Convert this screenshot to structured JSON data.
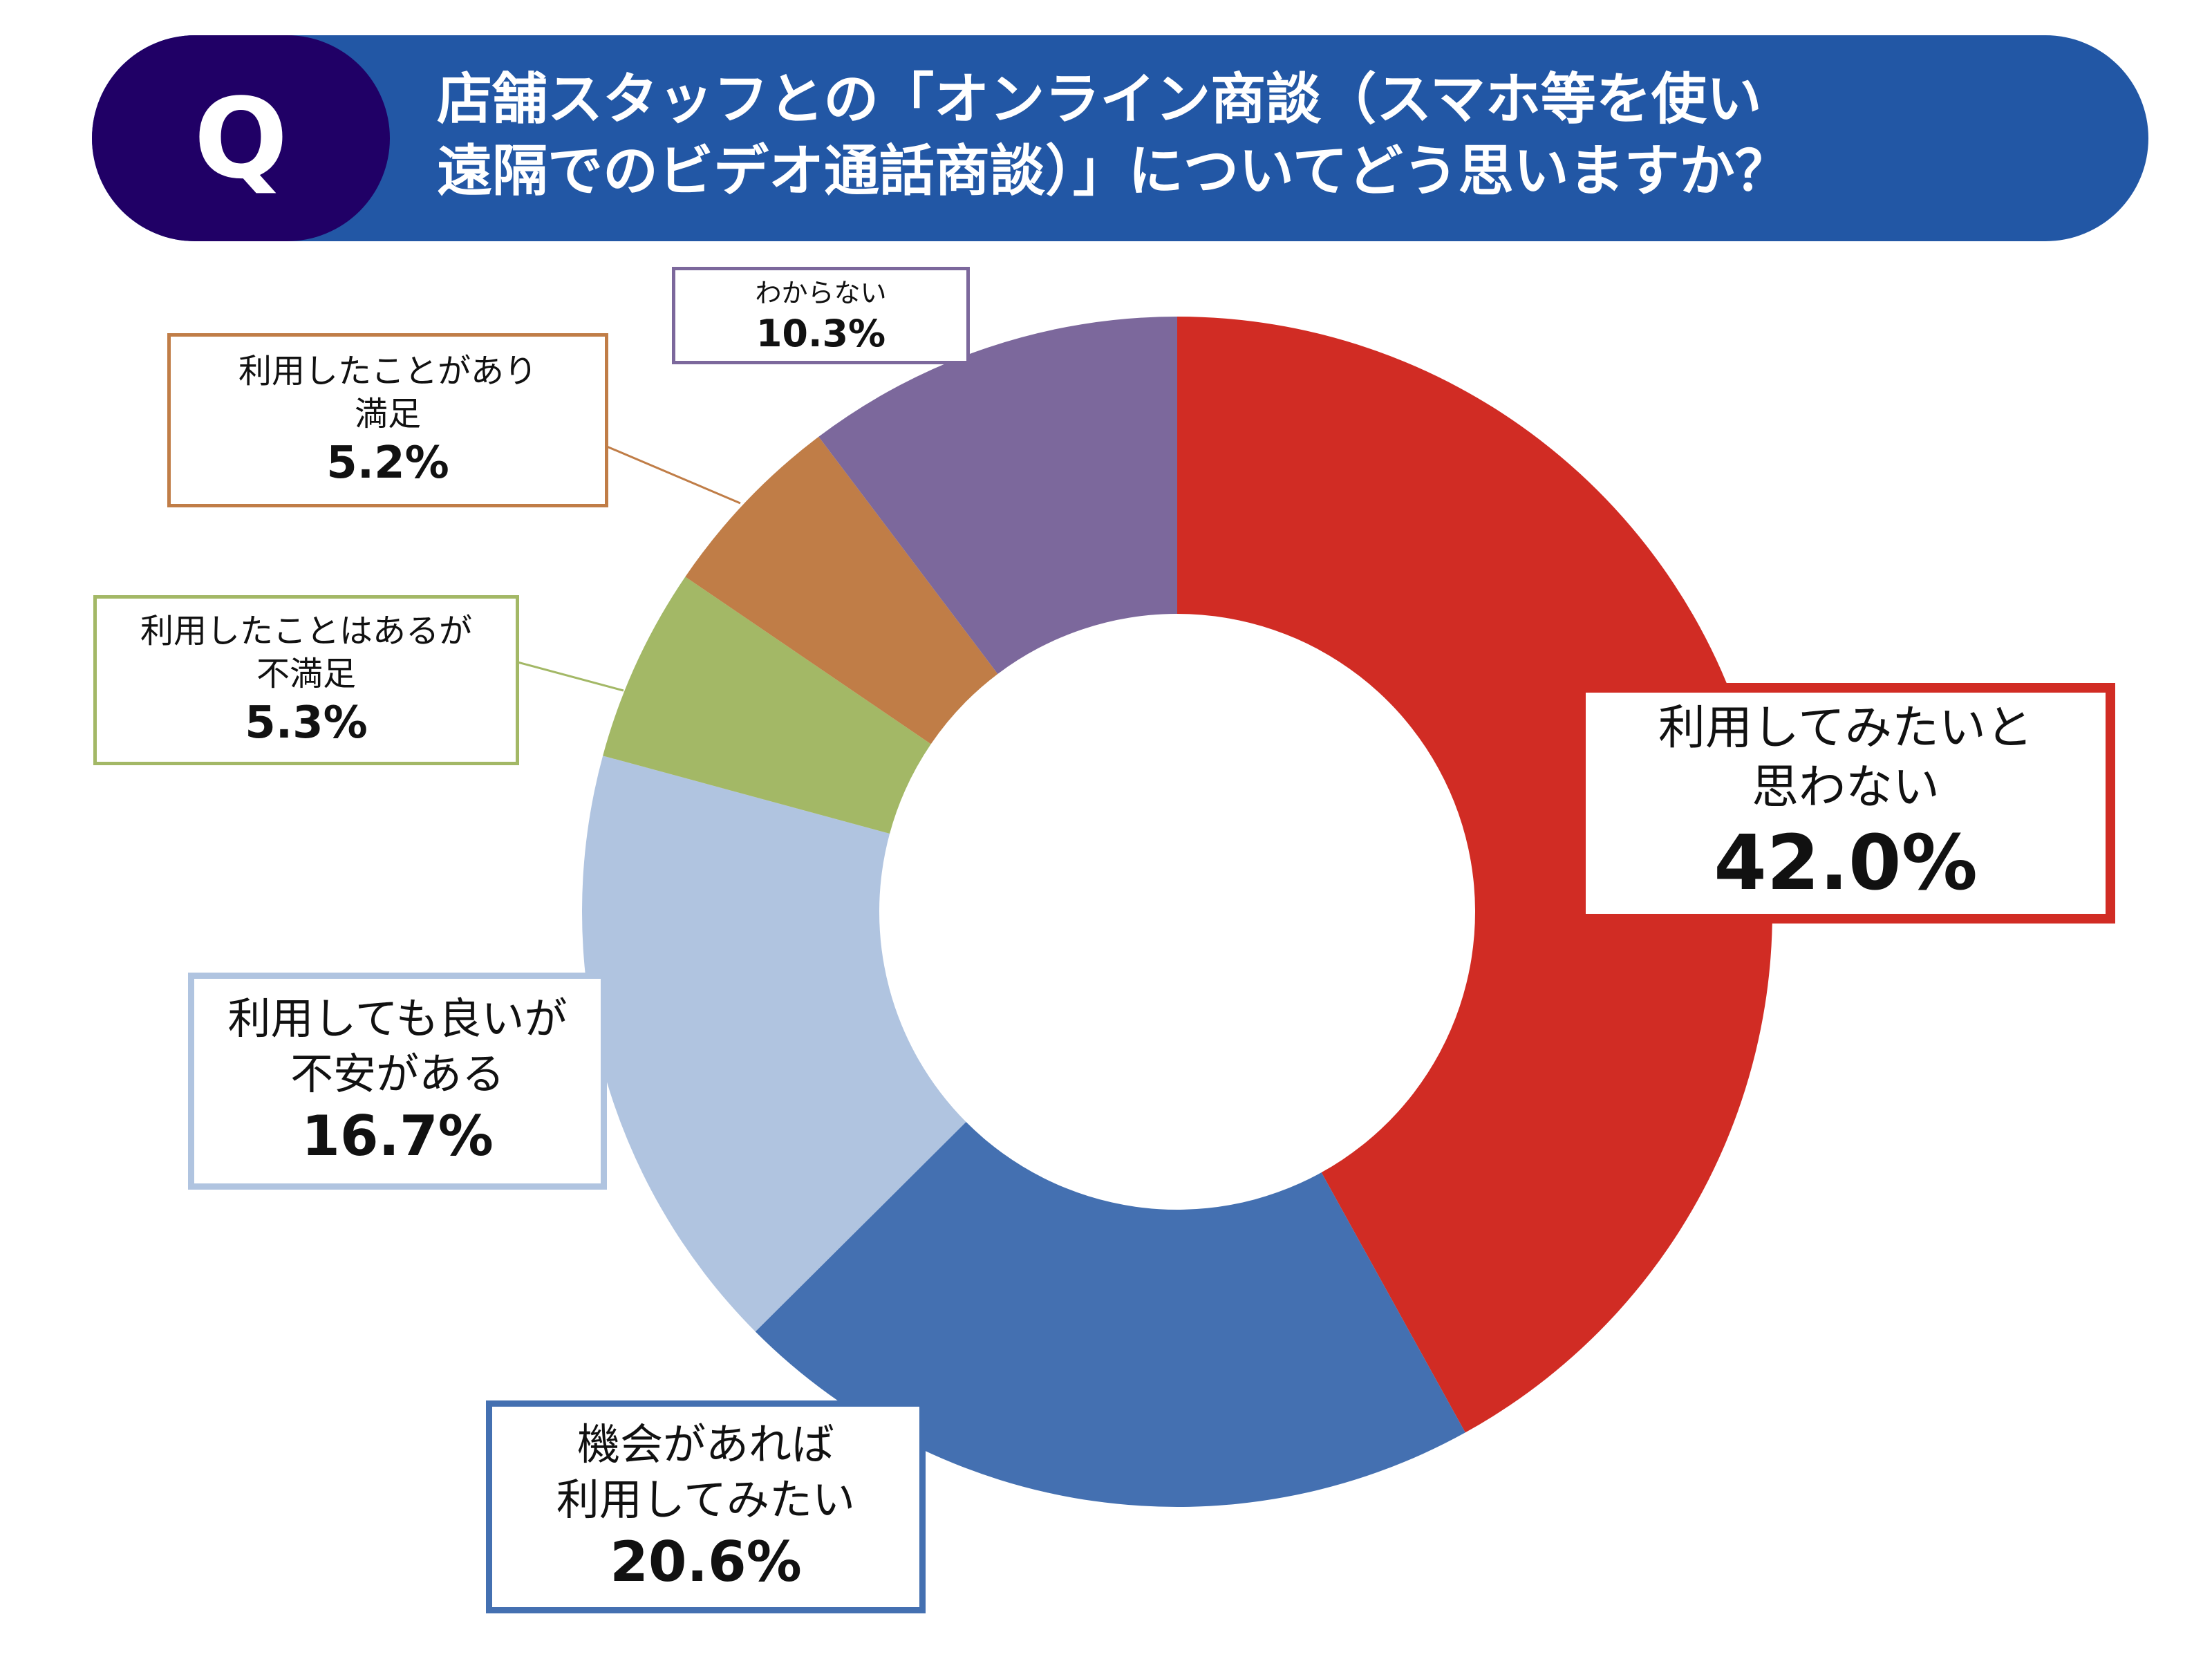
{
  "question_mark": "Q",
  "title_lines": [
    "店舗スタッフとの「オンライン商談（スマホ等を使い",
    "遠隔でのビデオ通話商談）」についてどう思いますか？"
  ],
  "chart_data": {
    "type": "pie",
    "donut": true,
    "title": "店舗スタッフとの「オンライン商談（スマホ等を使い遠隔でのビデオ通話商談）」についてどう思いますか？",
    "start": "top",
    "direction": "clockwise",
    "legend": "none",
    "slices": [
      {
        "label_lines": [
          "利用してみたいと",
          "思わない"
        ],
        "value": 42.0,
        "text": "42.0%",
        "color": "#d12c24"
      },
      {
        "label_lines": [
          "機会があれば",
          "利用してみたい"
        ],
        "value": 20.6,
        "text": "20.6%",
        "color": "#4470b1"
      },
      {
        "label_lines": [
          "利用しても良いが",
          "不安がある"
        ],
        "value": 16.7,
        "text": "16.7%",
        "color": "#b0c4e0"
      },
      {
        "label_lines": [
          "利用したことはあるが",
          "不満足"
        ],
        "value": 5.3,
        "text": "5.3%",
        "color": "#a3b866"
      },
      {
        "label_lines": [
          "利用したことがあり",
          "満足"
        ],
        "value": 5.2,
        "text": "5.2%",
        "color": "#c07d47"
      },
      {
        "label_lines": [
          "わからない"
        ],
        "value": 10.3,
        "text": "10.3%",
        "color": "#7c689c"
      }
    ]
  }
}
